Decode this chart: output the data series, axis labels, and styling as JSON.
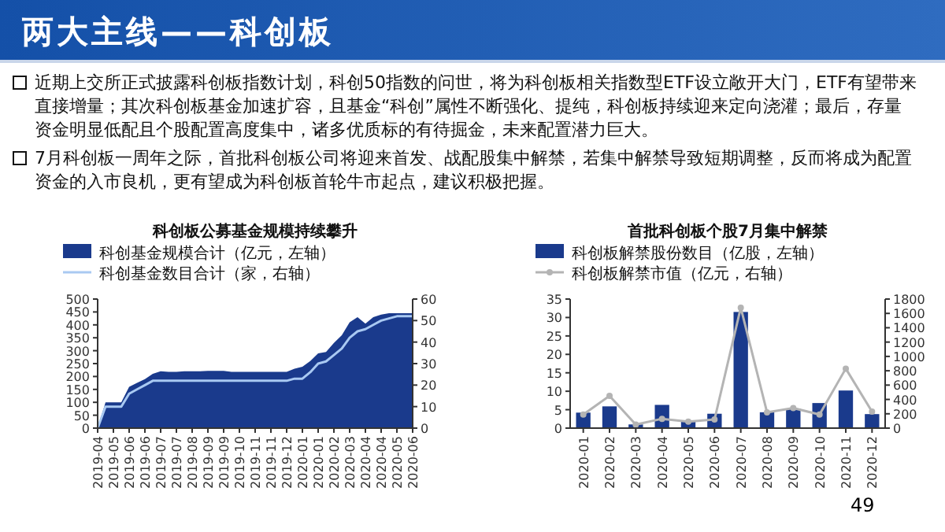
{
  "chart_data": [
    {
      "type": "other",
      "title": "两大主线——科创板",
      "annotations": [
        "近期上交所正式披露科创板指数计划，科创50指数的问世，将为科创板相关指数型ETF设立敞开大门，ETF有望带来直接增量；其次科创板基金加速扩容，且基金“科创”属性不断强化、提纯，科创板持续迎来定向浇灌；最后，存量资金明显低配且个股配置高度集中，诸多优质标的有待掘金，未来配置潜力巨大。",
        "7月科创板一周年之际，首批科创板公司将迎来首发、战配股集中解禁，若集中解禁导致短期调整，反而将成为配置资金的入市良机，更有望成为科创板首轮牛市起点，建议积极把握。",
        "49"
      ]
    },
    {
      "type": "area",
      "title": "科创板公募基金规模持续攀升",
      "legend": "top",
      "grid": false,
      "categories": [
        "2019-04",
        null,
        "2019-05",
        null,
        "2019-06",
        null,
        "2019-06",
        null,
        "2019-07",
        null,
        "2019-07",
        null,
        "2019-08",
        null,
        "2019-09",
        null,
        "2019-09",
        null,
        "2019-10",
        null,
        "2019-11",
        null,
        "2019-11",
        null,
        "2019-12",
        null,
        "2020-01",
        null,
        "2020-01",
        null,
        "2020-02",
        null,
        "2020-03",
        null,
        "2020-04",
        null,
        "2020-04",
        null,
        "2020-05",
        null,
        "2020-06"
      ],
      "ylim": [
        0,
        500
      ],
      "yticks": [
        0,
        50,
        100,
        150,
        200,
        250,
        300,
        350,
        400,
        450,
        500
      ],
      "y2lim": [
        0,
        60
      ],
      "y2ticks": [
        0,
        10,
        20,
        30,
        40,
        50,
        60
      ],
      "series": [
        {
          "name": "科创基金规模合计（亿元，左轴）",
          "type": "area",
          "color": "#1a3a8c",
          "values": [
            0,
            100,
            100,
            100,
            160,
            175,
            190,
            210,
            220,
            218,
            218,
            220,
            220,
            220,
            222,
            222,
            222,
            218,
            218,
            218,
            218,
            218,
            218,
            218,
            218,
            230,
            238,
            260,
            290,
            295,
            330,
            360,
            410,
            430,
            405,
            430,
            440,
            445,
            445,
            445,
            445
          ]
        },
        {
          "name": "科创基金数目合计（家，右轴）",
          "type": "line",
          "axis": "y2",
          "color": "#a9c9f2",
          "values": [
            0,
            10,
            10,
            10,
            16,
            18,
            20,
            22,
            22,
            22,
            22,
            22,
            22,
            22,
            22,
            22,
            22,
            22,
            22,
            22,
            22,
            22,
            22,
            22,
            22,
            23,
            23,
            26,
            30,
            31,
            34,
            37,
            42,
            45,
            46,
            48,
            50,
            51,
            52,
            52,
            52
          ]
        }
      ]
    },
    {
      "type": "bar",
      "title": "首批科创板个股7月集中解禁",
      "legend": "top",
      "grid": false,
      "categories": [
        "2020-01",
        "2020-02",
        "2020-03",
        "2020-04",
        "2020-05",
        "2020-06",
        "2020-07",
        "2020-08",
        "2020-09",
        "2020-10",
        "2020-11",
        "2020-12"
      ],
      "ylim": [
        0,
        35
      ],
      "yticks": [
        0,
        5,
        10,
        15,
        20,
        25,
        30,
        35
      ],
      "y2lim": [
        0,
        1800
      ],
      "y2ticks": [
        0,
        200,
        400,
        600,
        800,
        1000,
        1200,
        1400,
        1600,
        1800
      ],
      "series": [
        {
          "name": "科创板解禁股份数目（亿股，左轴）",
          "type": "bar",
          "color": "#1a3a8c",
          "values": [
            4.2,
            5.9,
            1.0,
            6.3,
            1.8,
            3.9,
            31.5,
            4.3,
            5.3,
            6.8,
            10.2,
            3.8
          ]
        },
        {
          "name": "科创板解禁市值（亿元，右轴）",
          "type": "line",
          "axis": "y2",
          "marker": "circle",
          "color": "#b4b4b4",
          "values": [
            190,
            450,
            50,
            130,
            90,
            120,
            1680,
            220,
            280,
            190,
            830,
            230
          ]
        }
      ]
    }
  ]
}
